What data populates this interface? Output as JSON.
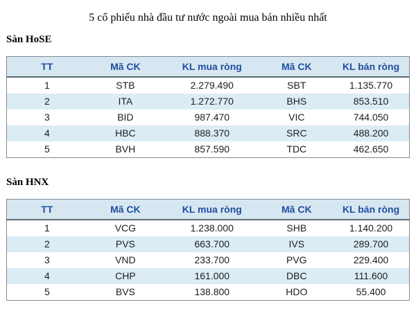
{
  "title": "5 cổ phiếu nhà đầu tư nước ngoài mua bán nhiều nhất",
  "columns": [
    "TT",
    "Mã CK",
    "KL mua ròng",
    "Mã CK",
    "KL bán ròng"
  ],
  "column_keys": [
    "rank",
    "buy-symbol",
    "buy-volume",
    "sell-symbol",
    "sell-volume"
  ],
  "sections": [
    {
      "label": "Sàn HoSE",
      "rows": [
        [
          "1",
          "STB",
          "2.279.490",
          "SBT",
          "1.135.770"
        ],
        [
          "2",
          "ITA",
          "1.272.770",
          "BHS",
          "853.510"
        ],
        [
          "3",
          "BID",
          "987.470",
          "VIC",
          "744.050"
        ],
        [
          "4",
          "HBC",
          "888.370",
          "SRC",
          "488.200"
        ],
        [
          "5",
          "BVH",
          "857.590",
          "TDC",
          "462.650"
        ]
      ]
    },
    {
      "label": "Sàn HNX",
      "rows": [
        [
          "1",
          "VCG",
          "1.238.000",
          "SHB",
          "1.140.200"
        ],
        [
          "2",
          "PVS",
          "663.700",
          "IVS",
          "289.700"
        ],
        [
          "3",
          "VND",
          "233.700",
          "PVG",
          "229.400"
        ],
        [
          "4",
          "CHP",
          "161.000",
          "DBC",
          "111.600"
        ],
        [
          "5",
          "BVS",
          "138.800",
          "HDO",
          "55.400"
        ]
      ]
    }
  ],
  "colors": {
    "header_bg": "#d7e7f2",
    "stripe_bg": "#dcecf5",
    "header_text": "#1f4e9e",
    "body_text": "#1d1d1f",
    "border": "#7b8a97",
    "header_rule": "#5d6a73",
    "page_bg": "#ffffff"
  }
}
